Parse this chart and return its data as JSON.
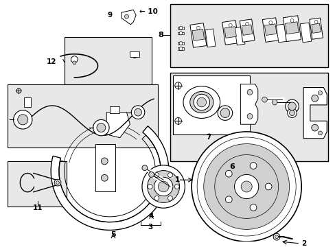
{
  "bg_color": "#ffffff",
  "fig_width": 4.89,
  "fig_height": 3.6,
  "dpi": 100,
  "lgray": "#e8e8e8",
  "mgray": "#d0d0d0",
  "dgray": "#aaaaaa"
}
